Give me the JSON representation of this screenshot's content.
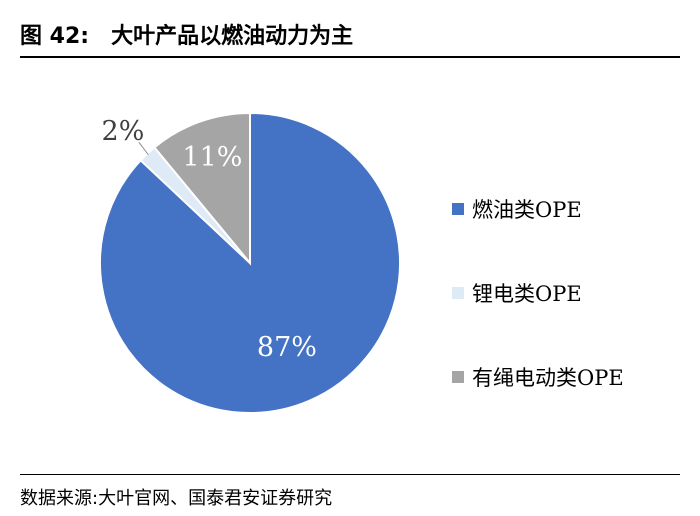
{
  "figure_label": "图 42:",
  "figure_title": "大叶产品以燃油动力为主",
  "source": "数据来源:大叶官网、国泰君安证券研究",
  "chart_data": {
    "type": "pie",
    "categories": [
      "燃油类OPE",
      "锂电类OPE",
      "有绳电动类OPE"
    ],
    "values": [
      87,
      2,
      11
    ],
    "labels": [
      "87%",
      "2%",
      "11%"
    ],
    "colors": [
      "#4472C4",
      "#DEEBF7",
      "#A5A5A5"
    ],
    "legend_position": "right"
  }
}
